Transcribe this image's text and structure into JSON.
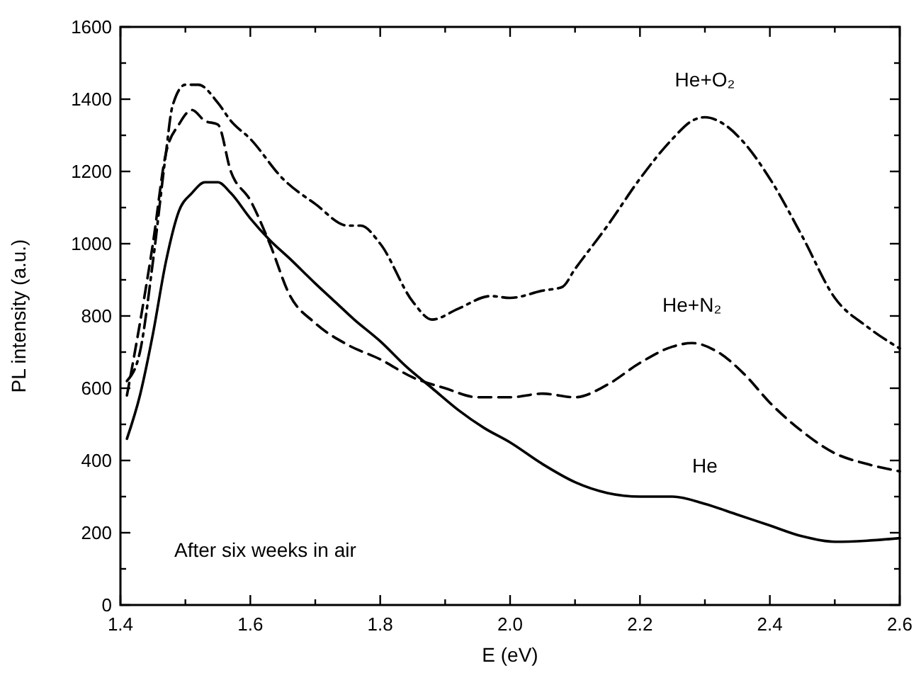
{
  "chart_data": {
    "type": "line",
    "xlabel": "E (eV)",
    "ylabel": "PL intensity (a.u.)",
    "xlim": [
      1.4,
      2.6
    ],
    "ylim": [
      0,
      1600
    ],
    "xticks": [
      1.4,
      {
        "value": 1.5,
        "label": null
      },
      1.6,
      {
        "value": 1.7,
        "label": null
      },
      1.8,
      {
        "value": 1.9,
        "label": null
      },
      {
        "value": 2,
        "label": "2.0"
      },
      {
        "value": 2.1,
        "label": null
      },
      2.2,
      {
        "value": 2.3,
        "label": null
      },
      2.4,
      {
        "value": 2.5,
        "label": null
      },
      2.6
    ],
    "yticks": [
      0,
      {
        "value": 100,
        "label": null
      },
      200,
      {
        "value": 300,
        "label": null
      },
      400,
      {
        "value": 500,
        "label": null
      },
      600,
      {
        "value": 700,
        "label": null
      },
      800,
      {
        "value": 900,
        "label": null
      },
      1000,
      {
        "value": 1100,
        "label": null
      },
      1200,
      {
        "value": 1300,
        "label": null
      },
      1400,
      {
        "value": 1500,
        "label": null
      },
      1600
    ],
    "grid": false,
    "marker": "none",
    "annotations": [
      "After six weeks in air"
    ],
    "series": [
      {
        "name": "He",
        "color": "#000000",
        "line_style": "solid",
        "x": [
          1.41,
          1.43,
          1.45,
          1.47,
          1.49,
          1.51,
          1.53,
          1.55,
          1.57,
          1.6,
          1.63,
          1.66,
          1.7,
          1.73,
          1.76,
          1.8,
          1.84,
          1.88,
          1.92,
          1.96,
          2.0,
          2.05,
          2.1,
          2.15,
          2.2,
          2.25,
          2.3,
          2.35,
          2.4,
          2.45,
          2.5,
          2.55,
          2.6
        ],
        "values": [
          460,
          580,
          750,
          950,
          1090,
          1140,
          1170,
          1170,
          1140,
          1070,
          1010,
          960,
          890,
          840,
          790,
          730,
          660,
          600,
          540,
          490,
          450,
          390,
          340,
          310,
          300,
          300,
          280,
          250,
          220,
          190,
          175,
          178,
          185
        ]
      },
      {
        "name": "He+N₂",
        "color": "#000000",
        "line_style": "dashed",
        "x": [
          1.41,
          1.43,
          1.45,
          1.47,
          1.49,
          1.51,
          1.53,
          1.55,
          1.57,
          1.6,
          1.63,
          1.66,
          1.7,
          1.75,
          1.8,
          1.85,
          1.9,
          1.95,
          2.0,
          2.05,
          2.1,
          2.15,
          2.2,
          2.25,
          2.28,
          2.32,
          2.36,
          2.4,
          2.45,
          2.5,
          2.55,
          2.6
        ],
        "values": [
          580,
          780,
          1000,
          1250,
          1330,
          1370,
          1340,
          1330,
          1200,
          1120,
          1000,
          860,
          780,
          720,
          680,
          630,
          600,
          575,
          575,
          585,
          575,
          610,
          670,
          715,
          725,
          700,
          640,
          560,
          480,
          420,
          390,
          370
        ]
      },
      {
        "name": "He+O₂",
        "color": "#000000",
        "line_style": "dashdot",
        "x": [
          1.41,
          1.43,
          1.45,
          1.47,
          1.48,
          1.5,
          1.52,
          1.55,
          1.57,
          1.6,
          1.65,
          1.7,
          1.75,
          1.77,
          1.8,
          1.85,
          1.88,
          1.92,
          1.97,
          2.0,
          2.05,
          2.08,
          2.1,
          2.15,
          2.2,
          2.25,
          2.28,
          2.3,
          2.33,
          2.36,
          2.4,
          2.45,
          2.5,
          2.55,
          2.6
        ],
        "values": [
          620,
          700,
          950,
          1250,
          1380,
          1440,
          1440,
          1390,
          1340,
          1290,
          1180,
          1110,
          1050,
          1050,
          1000,
          840,
          790,
          820,
          855,
          850,
          870,
          880,
          930,
          1050,
          1180,
          1290,
          1340,
          1350,
          1330,
          1280,
          1180,
          1020,
          850,
          770,
          710
        ]
      }
    ]
  }
}
